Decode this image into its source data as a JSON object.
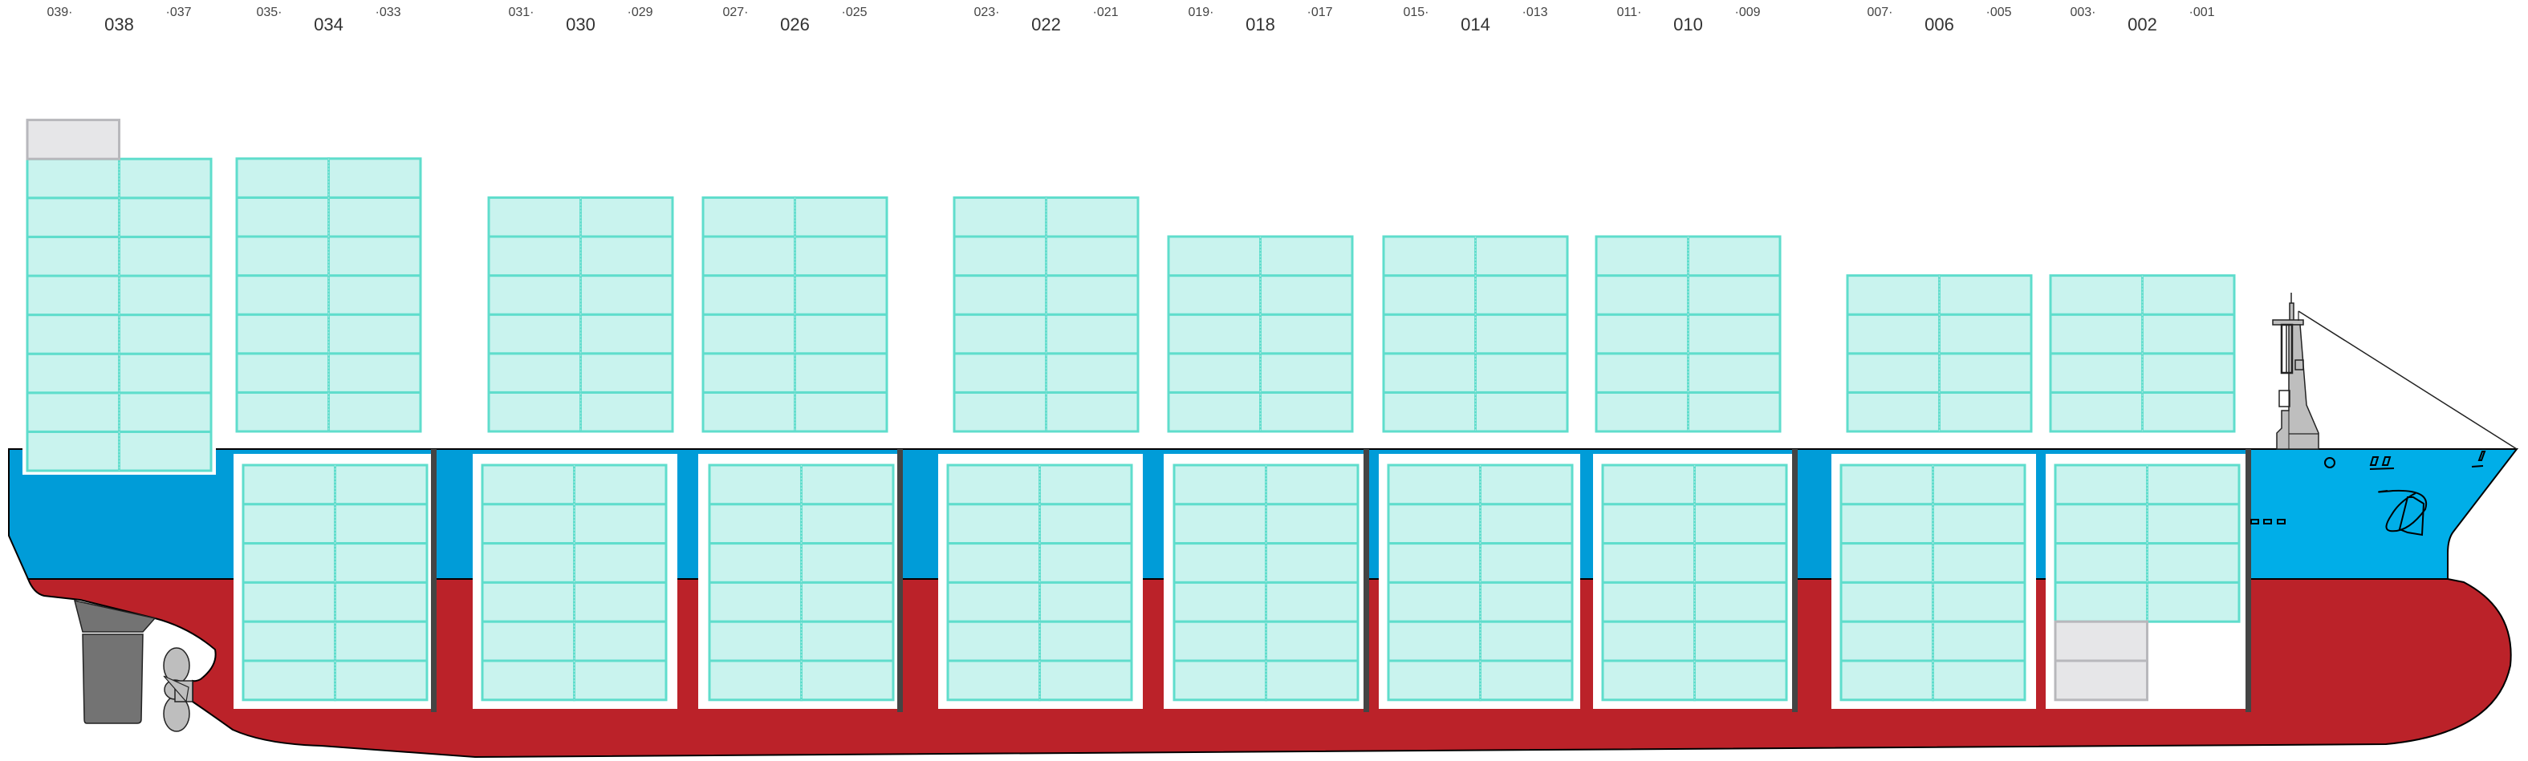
{
  "colors": {
    "hull_upper_aft": "#009cd8",
    "hull_upper_fwd": "#00aee8",
    "hull_lower": "#bb2229",
    "container_fill": "#c9f3ee",
    "container_stroke": "#5fddcc",
    "container_row_line": "#3fd4c0",
    "empty_slot_fill": "#e6e6e8",
    "empty_slot_stroke": "#b8b8bc",
    "bulkhead": "#444444",
    "rudder": "#737373",
    "propeller": "#bebebe"
  },
  "bays": [
    {
      "label": "038",
      "aft": "039·",
      "fwd": "·037",
      "deck_tiers": 8,
      "deck_empty_top": 1,
      "hold_tiers": 0,
      "hold_empty": 0
    },
    {
      "label": "034",
      "aft": "035·",
      "fwd": "·033",
      "deck_tiers": 7,
      "deck_empty_top": 0,
      "hold_tiers": 6,
      "hold_empty": 0
    },
    {
      "label": "030",
      "aft": "031·",
      "fwd": "·029",
      "deck_tiers": 6,
      "deck_empty_top": 0,
      "hold_tiers": 6,
      "hold_empty": 0
    },
    {
      "label": "026",
      "aft": "027·",
      "fwd": "·025",
      "deck_tiers": 6,
      "deck_empty_top": 0,
      "hold_tiers": 6,
      "hold_empty": 0
    },
    {
      "label": "022",
      "aft": "023·",
      "fwd": "·021",
      "deck_tiers": 6,
      "deck_empty_top": 0,
      "hold_tiers": 6,
      "hold_empty": 0
    },
    {
      "label": "018",
      "aft": "019·",
      "fwd": "·017",
      "deck_tiers": 5,
      "deck_empty_top": 0,
      "hold_tiers": 6,
      "hold_empty": 0
    },
    {
      "label": "014",
      "aft": "015·",
      "fwd": "·013",
      "deck_tiers": 5,
      "deck_empty_top": 0,
      "hold_tiers": 6,
      "hold_empty": 0
    },
    {
      "label": "010",
      "aft": "011·",
      "fwd": "·009",
      "deck_tiers": 5,
      "deck_empty_top": 0,
      "hold_tiers": 6,
      "hold_empty": 0
    },
    {
      "label": "006",
      "aft": "007·",
      "fwd": "·005",
      "deck_tiers": 4,
      "deck_empty_top": 0,
      "hold_tiers": 6,
      "hold_empty": 0
    },
    {
      "label": "002",
      "aft": "003·",
      "fwd": "·001",
      "deck_tiers": 4,
      "deck_empty_top": 0,
      "hold_tiers": 4,
      "hold_empty": 2
    }
  ]
}
